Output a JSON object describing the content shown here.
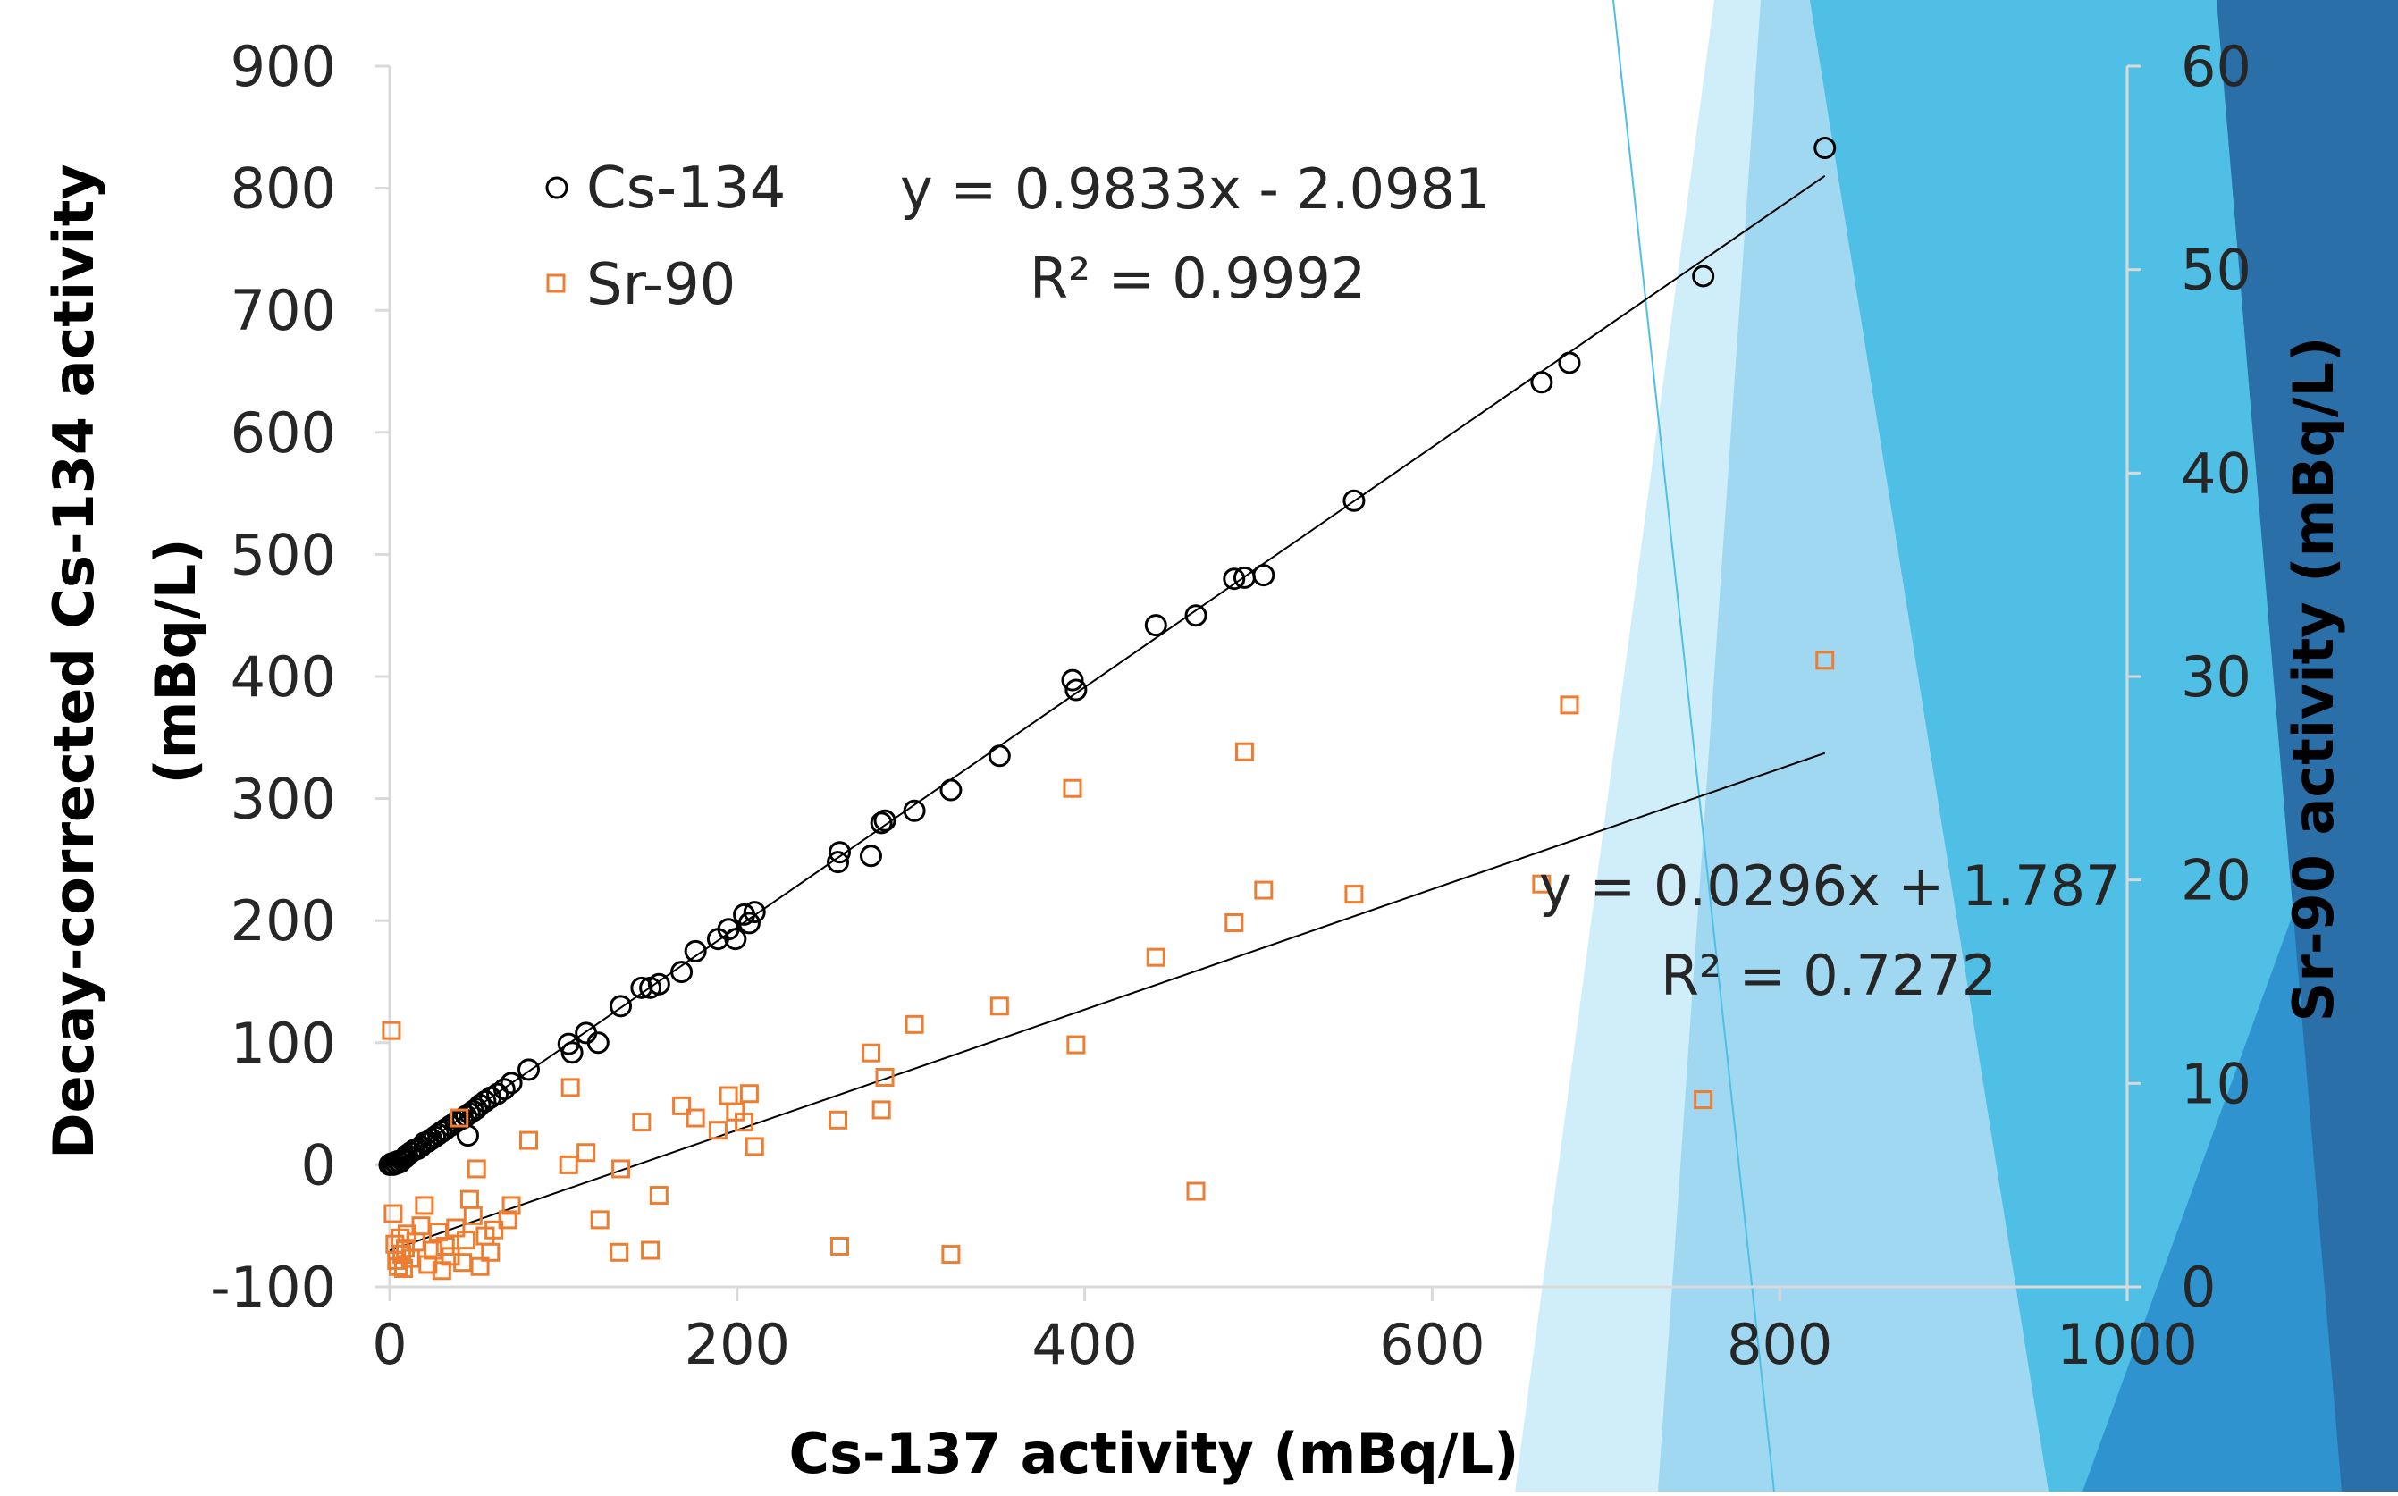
{
  "chart_data": {
    "type": "scatter",
    "xlabel": "Cs-137 activity (mBq/L)",
    "ylabel_lines": [
      "Decay-corrected Cs-134 activity",
      "(mBq/L)"
    ],
    "y2label": "Sr-90 activity (mBq/L)",
    "xlim": [
      0,
      1000
    ],
    "ylim": [
      -100,
      900
    ],
    "y2lim": [
      0,
      60
    ],
    "x_ticks": [
      "0",
      "200",
      "400",
      "600",
      "800",
      "1000"
    ],
    "y_ticks": [
      "-100",
      "0",
      "100",
      "200",
      "300",
      "400",
      "500",
      "600",
      "700",
      "800",
      "900"
    ],
    "y2_ticks": [
      "0",
      "10",
      "20",
      "30",
      "40",
      "50",
      "60"
    ],
    "x_tick_values": [
      0,
      200,
      400,
      600,
      800,
      1000
    ],
    "y_tick_values": [
      -100,
      0,
      100,
      200,
      300,
      400,
      500,
      600,
      700,
      800,
      900
    ],
    "y2_tick_values": [
      0,
      10,
      20,
      30,
      40,
      50,
      60
    ],
    "legend": [
      {
        "label": "Cs-134",
        "marker": "circle",
        "color": "#000000"
      },
      {
        "label": "Sr-90",
        "marker": "square",
        "color": "#ed7d31"
      }
    ],
    "series": [
      {
        "name": "Cs-134",
        "axis": "left",
        "marker": "circle",
        "color": "#000000",
        "points": [
          [
            0,
            0
          ],
          [
            1,
            1
          ],
          [
            2,
            0
          ],
          [
            3,
            2
          ],
          [
            4,
            1
          ],
          [
            5,
            3
          ],
          [
            6,
            2
          ],
          [
            7,
            4
          ],
          [
            8,
            5
          ],
          [
            9,
            6
          ],
          [
            10,
            8
          ],
          [
            12,
            10
          ],
          [
            14,
            12
          ],
          [
            16,
            13
          ],
          [
            18,
            15
          ],
          [
            20,
            18
          ],
          [
            22,
            19
          ],
          [
            24,
            21
          ],
          [
            26,
            23
          ],
          [
            28,
            25
          ],
          [
            30,
            27
          ],
          [
            32,
            29
          ],
          [
            35,
            32
          ],
          [
            38,
            35
          ],
          [
            40,
            37
          ],
          [
            42,
            38
          ],
          [
            44,
            40
          ],
          [
            46,
            42
          ],
          [
            48,
            44
          ],
          [
            50,
            46
          ],
          [
            45,
            24
          ],
          [
            52,
            49
          ],
          [
            55,
            52
          ],
          [
            58,
            55
          ],
          [
            62,
            58
          ],
          [
            66,
            62
          ],
          [
            70,
            67
          ],
          [
            80,
            78
          ],
          [
            103,
            99
          ],
          [
            105,
            92
          ],
          [
            113,
            108
          ],
          [
            120,
            100
          ],
          [
            133,
            130
          ],
          [
            145,
            145
          ],
          [
            150,
            145
          ],
          [
            155,
            148
          ],
          [
            168,
            158
          ],
          [
            176,
            175
          ],
          [
            189,
            185
          ],
          [
            195,
            193
          ],
          [
            199,
            185
          ],
          [
            204,
            205
          ],
          [
            207,
            198
          ],
          [
            210,
            207
          ],
          [
            258,
            248
          ],
          [
            259,
            256
          ],
          [
            277,
            253
          ],
          [
            283,
            280
          ],
          [
            285,
            282
          ],
          [
            302,
            290
          ],
          [
            323,
            307
          ],
          [
            351,
            335
          ],
          [
            393,
            397
          ],
          [
            395,
            389
          ],
          [
            441,
            442
          ],
          [
            464,
            450
          ],
          [
            486,
            480
          ],
          [
            492,
            481
          ],
          [
            503,
            483
          ],
          [
            555,
            544
          ],
          [
            663,
            641
          ],
          [
            679,
            657
          ],
          [
            756,
            728
          ],
          [
            826,
            833
          ]
        ]
      },
      {
        "name": "Sr-90",
        "axis": "right",
        "marker": "square",
        "color": "#ed7d31",
        "points": [
          [
            1,
            12.6
          ],
          [
            2,
            3.6
          ],
          [
            3,
            2.1
          ],
          [
            4,
            1.3
          ],
          [
            5,
            1.0
          ],
          [
            6,
            2.4
          ],
          [
            7,
            1.6
          ],
          [
            8,
            0.9
          ],
          [
            9,
            1.9
          ],
          [
            10,
            2.6
          ],
          [
            12,
            1.4
          ],
          [
            15,
            2.2
          ],
          [
            18,
            3.0
          ],
          [
            20,
            4.0
          ],
          [
            22,
            1.1
          ],
          [
            25,
            1.8
          ],
          [
            28,
            2.7
          ],
          [
            30,
            0.8
          ],
          [
            32,
            2.0
          ],
          [
            35,
            1.5
          ],
          [
            38,
            2.9
          ],
          [
            40,
            8.3
          ],
          [
            42,
            1.2
          ],
          [
            44,
            2.3
          ],
          [
            46,
            4.3
          ],
          [
            48,
            3.5
          ],
          [
            50,
            5.8
          ],
          [
            52,
            1.0
          ],
          [
            55,
            2.5
          ],
          [
            58,
            1.7
          ],
          [
            60,
            2.8
          ],
          [
            68,
            3.3
          ],
          [
            70,
            4.0
          ],
          [
            80,
            7.2
          ],
          [
            103,
            6.0
          ],
          [
            104,
            9.8
          ],
          [
            113,
            6.6
          ],
          [
            121,
            3.3
          ],
          [
            132,
            1.7
          ],
          [
            133,
            5.8
          ],
          [
            145,
            8.1
          ],
          [
            150,
            1.8
          ],
          [
            155,
            4.5
          ],
          [
            168,
            8.9
          ],
          [
            176,
            8.3
          ],
          [
            189,
            7.7
          ],
          [
            195,
            9.4
          ],
          [
            199,
            8.6
          ],
          [
            204,
            8.1
          ],
          [
            207,
            9.5
          ],
          [
            210,
            6.9
          ],
          [
            258,
            8.2
          ],
          [
            259,
            2.0
          ],
          [
            277,
            11.5
          ],
          [
            283,
            8.7
          ],
          [
            285,
            10.3
          ],
          [
            302,
            12.9
          ],
          [
            323,
            1.6
          ],
          [
            351,
            13.8
          ],
          [
            393,
            24.5
          ],
          [
            395,
            11.9
          ],
          [
            441,
            16.2
          ],
          [
            464,
            4.7
          ],
          [
            486,
            17.9
          ],
          [
            492,
            26.3
          ],
          [
            503,
            19.5
          ],
          [
            555,
            19.3
          ],
          [
            663,
            19.8
          ],
          [
            679,
            28.6
          ],
          [
            756,
            9.2
          ],
          [
            826,
            30.8
          ]
        ]
      }
    ],
    "trendlines": [
      {
        "series": "Cs-134",
        "axis": "left",
        "slope": 0.9833,
        "intercept": -2.0981,
        "x_range": [
          0,
          826
        ],
        "equation": "y = 0.9833x - 2.0981",
        "r2": "R² = 0.9992"
      },
      {
        "series": "Sr-90",
        "axis": "right",
        "slope": 0.0296,
        "intercept": 1.787,
        "x_range": [
          0,
          826
        ],
        "equation": "y = 0.0296x + 1.787",
        "r2": "R² = 0.7272"
      }
    ],
    "grid": false,
    "legend_position": "top-left",
    "colors": {
      "axis": "#d9d9d9",
      "text": "#262626",
      "trendline": "#000000",
      "cs134": "#000000",
      "sr90": "#ed7d31",
      "bg_light": "#cfeef9",
      "bg_mid": "#9fd8f0",
      "bg_bright": "#4fbfe6",
      "bg_deep": "#2f93cf",
      "bg_dark": "#2a6fa8"
    }
  }
}
